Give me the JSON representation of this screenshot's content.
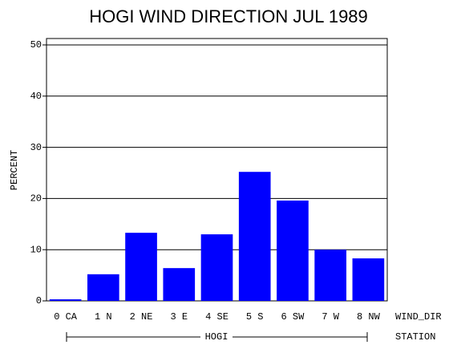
{
  "chart_data": {
    "type": "bar",
    "title": "HOGI WIND DIRECTION JUL 1989",
    "ylabel": "PERCENT",
    "categories": [
      "0 CA",
      "1 N",
      "2 NE",
      "3 E",
      "4 SE",
      "5 S",
      "6 SW",
      "7 W",
      "8 NW"
    ],
    "values": [
      0.3,
      5.2,
      13.3,
      6.4,
      13.0,
      25.2,
      19.6,
      10.0,
      8.3
    ],
    "color": "#0000ff",
    "ylim": [
      0,
      51.25
    ],
    "yticks": [
      0,
      10,
      20,
      30,
      40,
      50
    ],
    "grid": true,
    "xlabel": "WIND_DIR",
    "group": "HOGI",
    "group_label": "STATION"
  }
}
